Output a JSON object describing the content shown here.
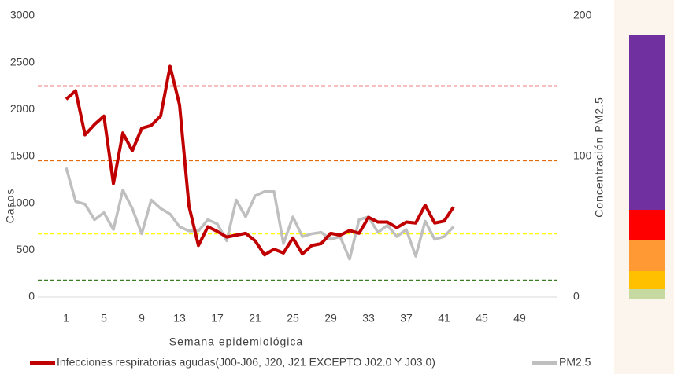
{
  "chart_data": {
    "type": "line",
    "x": [
      1,
      2,
      3,
      4,
      5,
      6,
      7,
      8,
      9,
      10,
      11,
      12,
      13,
      14,
      15,
      16,
      17,
      18,
      19,
      20,
      21,
      22,
      23,
      24,
      25,
      26,
      27,
      28,
      29,
      30,
      31,
      32,
      33,
      34,
      35,
      36,
      37,
      38,
      39,
      40,
      41,
      42
    ],
    "xlim": [
      -2,
      53
    ],
    "xticks": [
      1,
      5,
      9,
      13,
      17,
      21,
      25,
      29,
      33,
      37,
      41,
      45,
      49
    ],
    "ylim": [
      0,
      3000
    ],
    "yticks": [
      0,
      500,
      1000,
      1500,
      2000,
      2500,
      3000
    ],
    "y2lim": [
      0,
      200
    ],
    "y2ticks": [
      0,
      100,
      200
    ],
    "xlabel": "Semana epidemiológica",
    "ylabel": "Casos",
    "y2label": "Concentración PM2.5",
    "series": [
      {
        "name": "Infecciones respiratorias agudas(J00-J06, J20, J21 EXCEPTO J02.0 Y J03.0)",
        "color": "#c00000",
        "values": [
          2110,
          2200,
          1730,
          1840,
          1930,
          1210,
          1750,
          1560,
          1800,
          1830,
          1930,
          2460,
          2050,
          970,
          550,
          750,
          700,
          640,
          660,
          680,
          600,
          450,
          510,
          470,
          630,
          460,
          550,
          570,
          680,
          660,
          710,
          680,
          850,
          800,
          800,
          740,
          800,
          790,
          980,
          790,
          810,
          960
        ]
      },
      {
        "name": "PM2.5",
        "color": "#bfbfbf",
        "axis": "y2",
        "values": [
          92,
          68,
          66,
          55,
          60,
          48,
          76,
          63,
          45,
          69,
          63,
          59,
          50,
          47,
          47,
          55,
          52,
          40,
          69,
          57,
          72,
          75,
          75,
          38,
          57,
          43,
          45,
          46,
          41,
          43,
          27,
          55,
          57,
          46,
          51,
          43,
          48,
          29,
          54,
          41,
          43,
          50
        ]
      }
    ],
    "reference_lines": [
      {
        "value": 150,
        "color": "#e00000",
        "axis": "y2"
      },
      {
        "value": 97,
        "color": "#e36c09",
        "axis": "y2"
      },
      {
        "value": 45,
        "color": "#ffff00",
        "axis": "y2"
      },
      {
        "value": 12,
        "color": "#3a7d22",
        "axis": "y2"
      }
    ]
  }
}
